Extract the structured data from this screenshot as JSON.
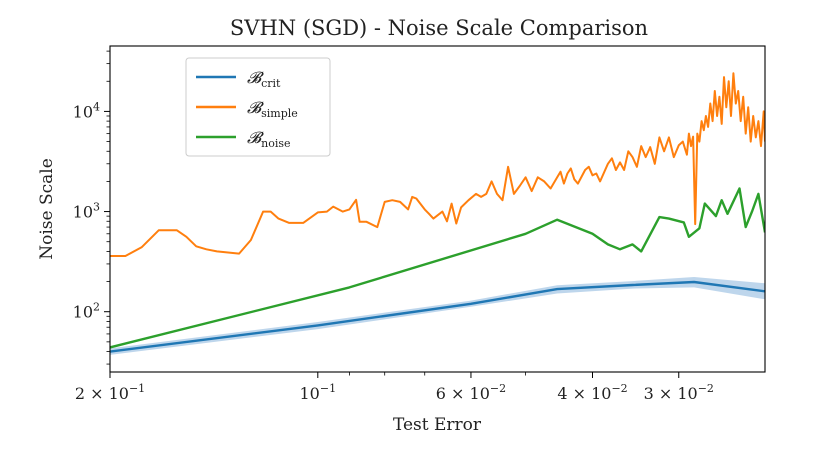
{
  "chart_data": {
    "type": "line",
    "title": "SVHN (SGD) - Noise Scale Comparison",
    "xlabel": "Test Error",
    "ylabel": "Noise Scale",
    "x_scale": "log",
    "x_reversed": true,
    "y_scale": "log",
    "xlim": [
      0.2,
      0.0225
    ],
    "ylim": [
      25,
      45000
    ],
    "grid": false,
    "legend_position": "top-left",
    "x_ticks": [
      {
        "value": 0.2,
        "base": "2 × 10",
        "exp": "−1"
      },
      {
        "value": 0.1,
        "base": "10",
        "exp": "−1"
      },
      {
        "value": 0.06,
        "base": "6 × 10",
        "exp": "−2"
      },
      {
        "value": 0.04,
        "base": "4 × 10",
        "exp": "−2"
      },
      {
        "value": 0.03,
        "base": "3 × 10",
        "exp": "−2"
      }
    ],
    "x_minor_ticks": [
      0.09,
      0.08,
      0.07,
      0.05
    ],
    "y_ticks": [
      {
        "value": 100,
        "base": "10",
        "exp": "2"
      },
      {
        "value": 1000,
        "base": "10",
        "exp": "3"
      },
      {
        "value": 10000,
        "base": "10",
        "exp": "4"
      }
    ],
    "series": [
      {
        "name": "crit",
        "legend_base": "𝓑",
        "legend_sub": "crit",
        "color": "#1f77b4",
        "band_color": "#a8c8e5",
        "x": [
          0.2,
          0.1,
          0.06,
          0.045,
          0.035,
          0.0285,
          0.0225
        ],
        "values": [
          40,
          73,
          120,
          168,
          185,
          198,
          160
        ],
        "lower": [
          37,
          67,
          112,
          152,
          170,
          175,
          133
        ],
        "upper": [
          43,
          79,
          129,
          184,
          202,
          222,
          192
        ]
      },
      {
        "name": "simple",
        "legend_base": "𝓑",
        "legend_sub": "simple",
        "color": "#ff7f0e",
        "x": [
          0.2,
          0.19,
          0.18,
          0.17,
          0.16,
          0.155,
          0.15,
          0.145,
          0.14,
          0.13,
          0.125,
          0.12,
          0.117,
          0.114,
          0.11,
          0.105,
          0.1,
          0.097,
          0.095,
          0.092,
          0.09,
          0.088,
          0.087,
          0.085,
          0.082,
          0.08,
          0.078,
          0.076,
          0.074,
          0.073,
          0.072,
          0.07,
          0.069,
          0.068,
          0.066,
          0.065,
          0.064,
          0.063,
          0.062,
          0.0605,
          0.059,
          0.058,
          0.057,
          0.056,
          0.055,
          0.054,
          0.053,
          0.052,
          0.051,
          0.05,
          0.049,
          0.048,
          0.047,
          0.046,
          0.045,
          0.0445,
          0.044,
          0.0435,
          0.043,
          0.0425,
          0.042,
          0.041,
          0.0405,
          0.04,
          0.0395,
          0.039,
          0.038,
          0.0375,
          0.037,
          0.0365,
          0.036,
          0.0355,
          0.035,
          0.0345,
          0.034,
          0.0335,
          0.033,
          0.0325,
          0.032,
          0.0315,
          0.031,
          0.0305,
          0.03,
          0.0296,
          0.0292,
          0.029,
          0.0288,
          0.0286,
          0.0284,
          0.0282,
          0.028,
          0.0278,
          0.0276,
          0.0274,
          0.0272,
          0.027,
          0.0268,
          0.0266,
          0.0264,
          0.0262,
          0.026,
          0.0258,
          0.0256,
          0.0254,
          0.0252,
          0.025,
          0.0248,
          0.0246,
          0.0244,
          0.0242,
          0.024,
          0.0238,
          0.0236,
          0.0234,
          0.0232,
          0.023,
          0.0228,
          0.0226,
          0.0225
        ],
        "values": [
          360,
          360,
          440,
          650,
          650,
          560,
          450,
          420,
          400,
          380,
          520,
          1000,
          1000,
          850,
          770,
          770,
          980,
          1000,
          1120,
          1000,
          1050,
          1310,
          790,
          790,
          700,
          1250,
          1300,
          1250,
          1050,
          1400,
          1350,
          1050,
          950,
          850,
          1000,
          800,
          1200,
          760,
          1100,
          1300,
          1500,
          1400,
          1500,
          2000,
          1500,
          1300,
          2800,
          1500,
          1800,
          2200,
          1600,
          2200,
          2000,
          1700,
          2200,
          2500,
          1900,
          2400,
          2700,
          2100,
          1900,
          2600,
          2800,
          2300,
          2400,
          2000,
          3000,
          3400,
          2600,
          3100,
          2600,
          4000,
          3500,
          2800,
          4500,
          3500,
          4400,
          3000,
          5500,
          4000,
          5500,
          3500,
          4600,
          5000,
          3700,
          6000,
          4500,
          5600,
          750,
          6000,
          5000,
          8000,
          6500,
          9000,
          7000,
          12000,
          8000,
          16000,
          9000,
          14000,
          7500,
          22000,
          11000,
          20000,
          9000,
          24000,
          12000,
          16000,
          8000,
          14000,
          6000,
          11000,
          5000,
          9000,
          5500,
          8000,
          4500,
          10000,
          5000
        ]
      },
      {
        "name": "noise",
        "legend_base": "𝓑",
        "legend_sub": "noise",
        "color": "#2ca02c",
        "x": [
          0.2,
          0.09,
          0.05,
          0.045,
          0.04,
          0.038,
          0.0365,
          0.035,
          0.034,
          0.032,
          0.031,
          0.0295,
          0.029,
          0.028,
          0.0275,
          0.0265,
          0.026,
          0.0255,
          0.0245,
          0.024,
          0.0235,
          0.023,
          0.0225
        ],
        "values": [
          44,
          175,
          600,
          830,
          600,
          470,
          420,
          470,
          400,
          880,
          850,
          780,
          560,
          680,
          1200,
          900,
          1300,
          950,
          1700,
          700,
          1000,
          1500,
          620
        ]
      }
    ]
  }
}
